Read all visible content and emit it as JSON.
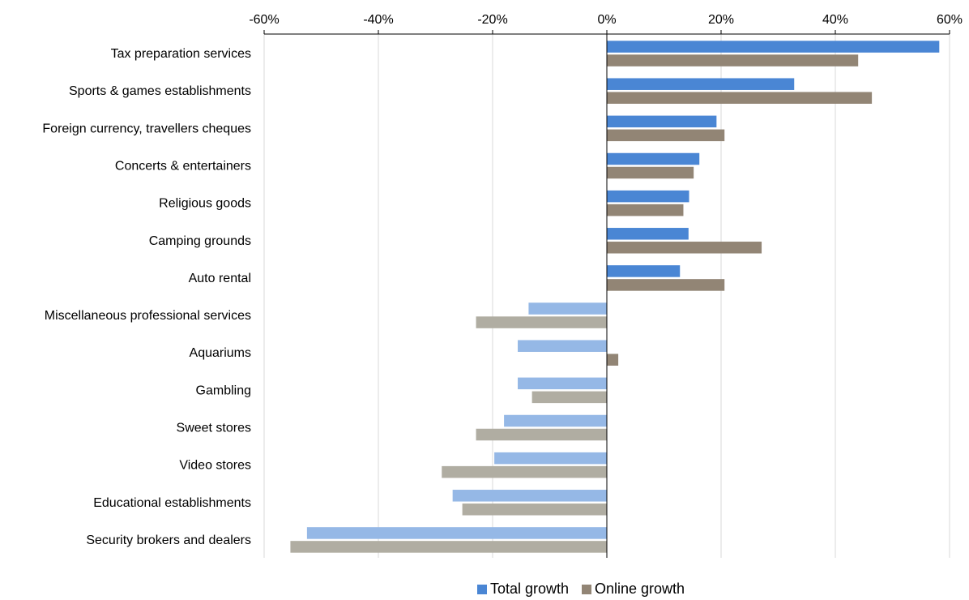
{
  "chart_data": {
    "type": "bar",
    "orientation": "horizontal",
    "title": "",
    "xlabel": "",
    "ylabel": "",
    "xlim": [
      -60,
      60
    ],
    "x_ticks": [
      "-60%",
      "-40%",
      "-20%",
      "0%",
      "20%",
      "40%",
      "60%"
    ],
    "x_axis_position": "top",
    "grid": true,
    "legend_position": "bottom",
    "categories": [
      "Tax preparation services",
      "Sports & games establishments",
      "Foreign currency, travellers cheques",
      "Concerts & entertainers",
      "Religious goods",
      "Camping grounds",
      "Auto rental",
      "Miscellaneous professional services",
      "Aquariums",
      "Gambling",
      "Sweet stores",
      "Video stores",
      "Educational establishments",
      "Security brokers and dealers"
    ],
    "series": [
      {
        "name": "Total growth",
        "color": "#4a86d4",
        "negative_color": "#95b8e6",
        "values": [
          58.2,
          32.8,
          19.2,
          16.2,
          14.4,
          14.3,
          12.8,
          -13.7,
          -15.6,
          -15.6,
          -18,
          -19.7,
          -27,
          -52.5
        ]
      },
      {
        "name": "Online growth",
        "color": "#928575",
        "negative_color": "#b0ada2",
        "values": [
          44,
          46.4,
          20.6,
          15.2,
          13.4,
          27.1,
          20.6,
          -22.9,
          2,
          -13.1,
          -22.9,
          -28.9,
          -25.3,
          -55.4
        ]
      }
    ]
  }
}
